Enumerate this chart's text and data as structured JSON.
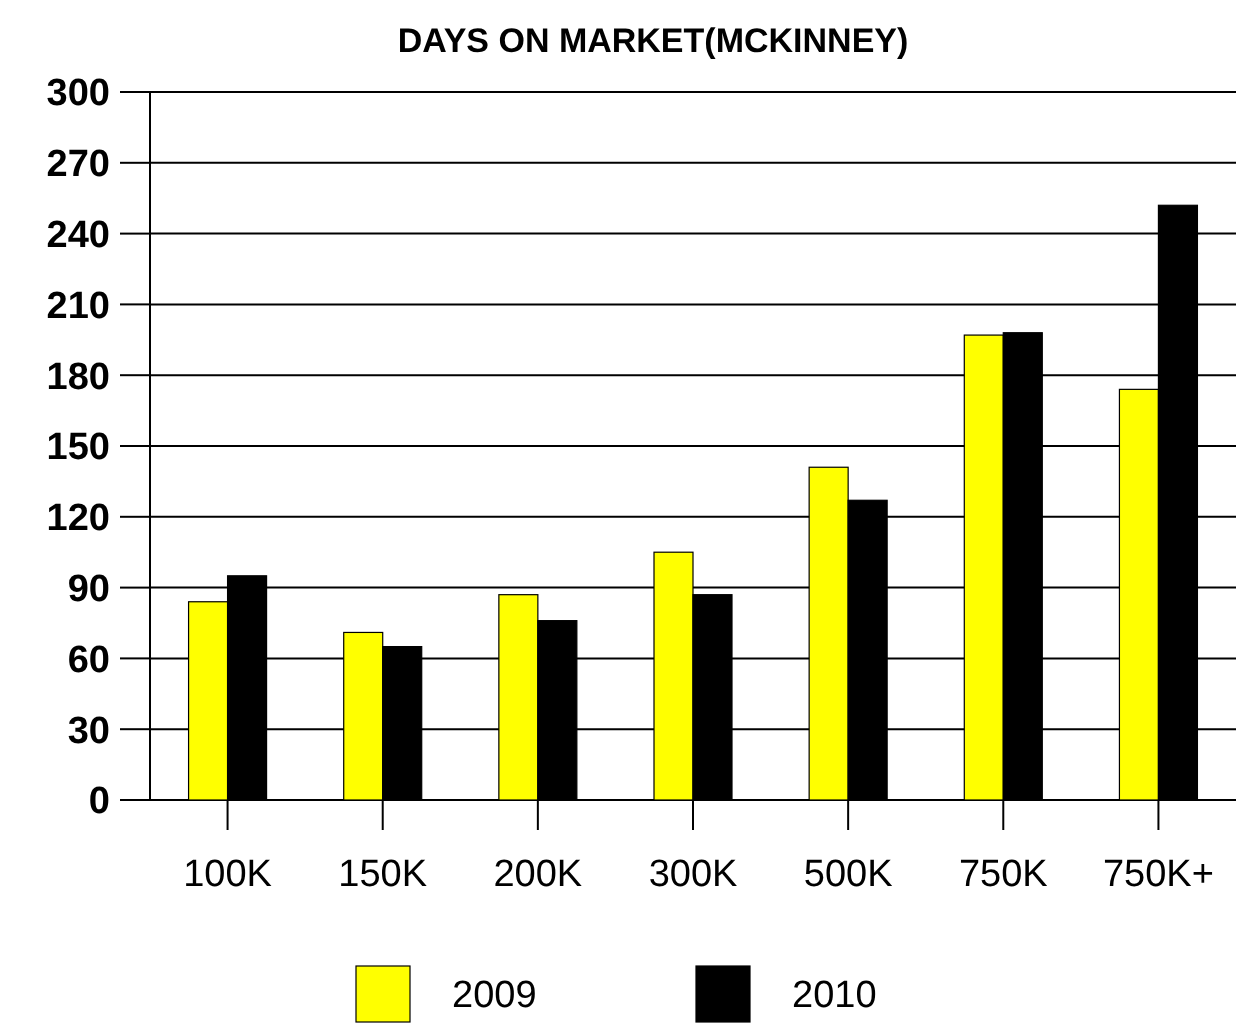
{
  "chart_data": {
    "type": "bar",
    "title": "DAYS ON MARKET(MCKINNEY)",
    "categories": [
      "100K",
      "150K",
      "200K",
      "300K",
      "500K",
      "750K",
      "750K+"
    ],
    "series": [
      {
        "name": "2009",
        "color": "#ffff00",
        "values": [
          84,
          71,
          87,
          105,
          141,
          197,
          174
        ]
      },
      {
        "name": "2010",
        "color": "#000000",
        "values": [
          95,
          65,
          76,
          87,
          127,
          198,
          252
        ]
      }
    ],
    "ylim": [
      0,
      300
    ],
    "yticks": [
      0,
      30,
      60,
      90,
      120,
      150,
      180,
      210,
      240,
      270,
      300
    ],
    "grid": "y",
    "legend": "bottom"
  }
}
